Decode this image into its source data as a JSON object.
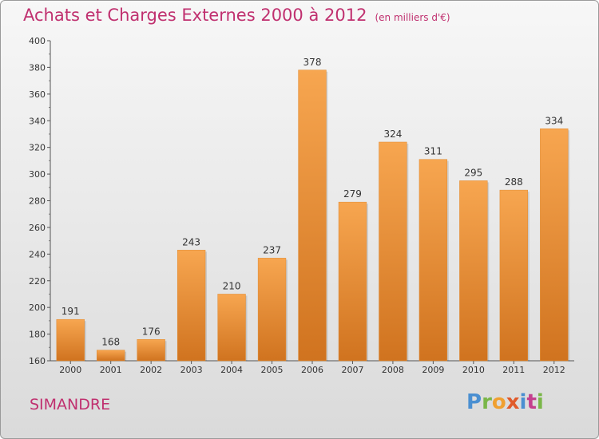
{
  "header": {
    "title": "Achats et Charges Externes 2000 à 2012",
    "subtitle": "(en milliers d'€)"
  },
  "footer": {
    "location": "SIMANDRE",
    "brand": "Proxiti"
  },
  "colors": {
    "title": "#c0306f",
    "bar_top": "#f7a650",
    "bar_bottom": "#d0731f"
  },
  "chart_data": {
    "type": "bar",
    "title": "Achats et Charges Externes 2000 à 2012",
    "subtitle": "(en milliers d'€)",
    "categories": [
      "2000",
      "2001",
      "2002",
      "2003",
      "2004",
      "2005",
      "2006",
      "2007",
      "2008",
      "2009",
      "2010",
      "2011",
      "2012"
    ],
    "values": [
      191,
      168,
      176,
      243,
      210,
      237,
      378,
      279,
      324,
      311,
      295,
      288,
      334
    ],
    "ylim": [
      160,
      400
    ],
    "yticks": [
      160,
      180,
      200,
      220,
      240,
      260,
      280,
      300,
      320,
      340,
      360,
      380,
      400
    ],
    "grid": false
  }
}
